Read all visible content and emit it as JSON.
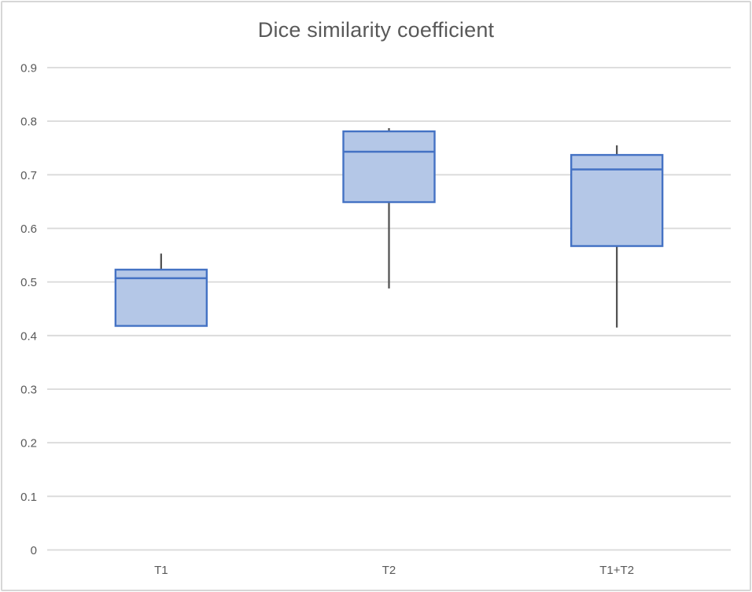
{
  "chart_data": {
    "type": "boxplot",
    "title": "Dice similarity coefficient",
    "categories": [
      "T1",
      "T2",
      "T1+T2"
    ],
    "boxes": [
      {
        "category": "T1",
        "whisker_low": 0.418,
        "q1": 0.418,
        "median": 0.507,
        "q3": 0.523,
        "whisker_high": 0.553
      },
      {
        "category": "T2",
        "whisker_low": 0.488,
        "q1": 0.649,
        "median": 0.743,
        "q3": 0.781,
        "whisker_high": 0.787
      },
      {
        "category": "T1+T2",
        "whisker_low": 0.415,
        "q1": 0.567,
        "median": 0.71,
        "q3": 0.737,
        "whisker_high": 0.755
      }
    ],
    "ytick_labels": [
      "0",
      "0.1",
      "0.2",
      "0.3",
      "0.4",
      "0.5",
      "0.6",
      "0.7",
      "0.8",
      "0.9"
    ],
    "ytick_values": [
      0,
      0.1,
      0.2,
      0.3,
      0.4,
      0.5,
      0.6,
      0.7,
      0.8,
      0.9
    ],
    "ylim": [
      0,
      0.9
    ],
    "grid": "horizontal",
    "legend": "none",
    "xlabel": "",
    "ylabel": "",
    "colors": {
      "box_fill": "#b4c7e7",
      "box_border": "#4472c4",
      "median_line": "#4472c4",
      "whisker": "#545454",
      "gridline": "#d9d9d9",
      "text": "#595959",
      "frame_border": "#d7d7d7",
      "background": "#ffffff"
    }
  }
}
